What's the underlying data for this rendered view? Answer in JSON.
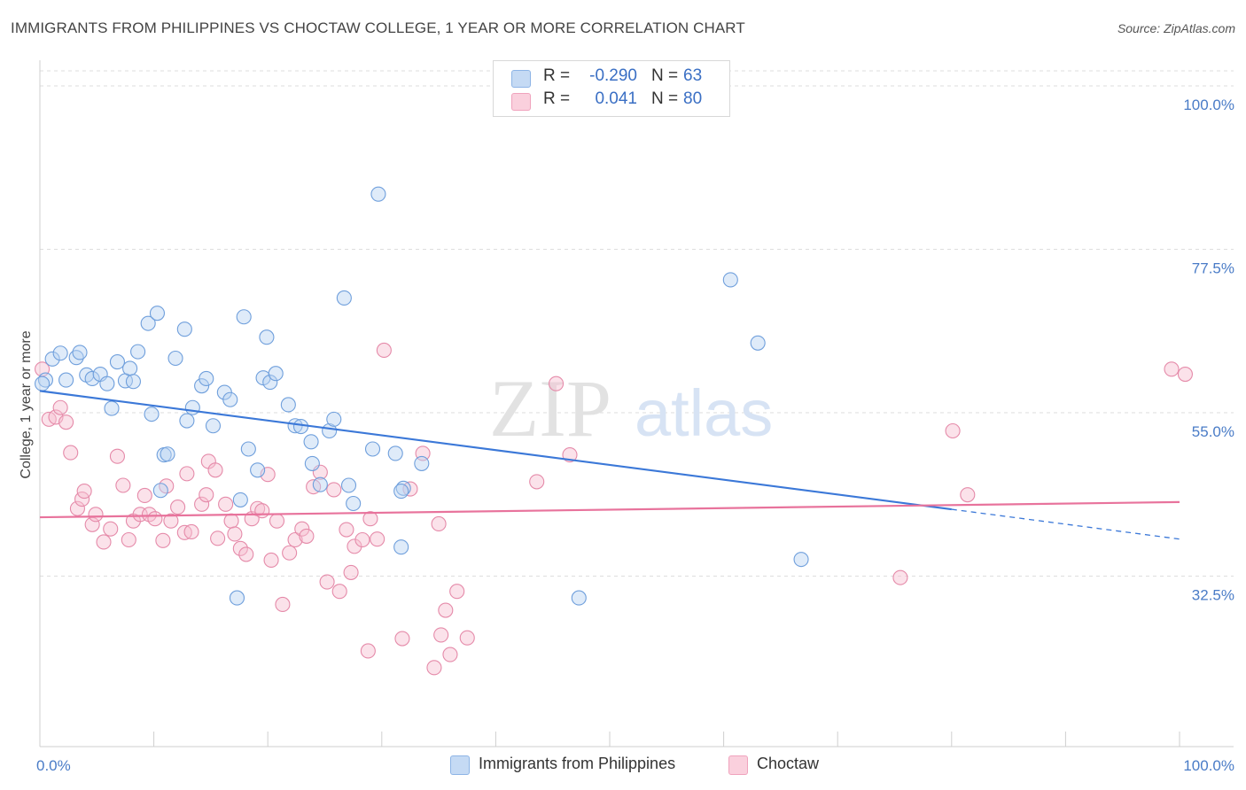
{
  "header": {
    "title": "IMMIGRANTS FROM PHILIPPINES VS CHOCTAW COLLEGE, 1 YEAR OR MORE CORRELATION CHART",
    "source": "Source: ZipAtlas.com"
  },
  "watermark": {
    "zip": "ZIP",
    "atlas": "atlas"
  },
  "legend": {
    "rows": [
      {
        "r_label": "R =",
        "r_value": "-0.290",
        "n_label": "N =",
        "n_value": "63",
        "color": "#a9c8ee"
      },
      {
        "r_label": "R =",
        "r_value": "0.041",
        "n_label": "N =",
        "n_value": "80",
        "color": "#f5b8cb"
      }
    ]
  },
  "bottom_legend": {
    "items": [
      {
        "label": "Immigrants from Philippines",
        "color": "#a9c8ee"
      },
      {
        "label": "Choctaw",
        "color": "#f5b8cb"
      }
    ]
  },
  "chart_data": {
    "type": "scatter",
    "title": "IMMIGRANTS FROM PHILIPPINES VS CHOCTAW COLLEGE, 1 YEAR OR MORE CORRELATION CHART",
    "xlabel": "",
    "ylabel": "College, 1 year or more",
    "xlim": [
      0,
      100
    ],
    "ylim": [
      10,
      105
    ],
    "x_tick_labels": [
      "0.0%",
      "100.0%"
    ],
    "y_ticks": [
      32.5,
      55.0,
      77.5,
      100.0
    ],
    "y_tick_labels": [
      "32.5%",
      "55.0%",
      "77.5%",
      "100.0%"
    ],
    "grid": true,
    "legend_position": "top-center",
    "colors": {
      "philippines": "#3b78d8",
      "choctaw": "#e8739c"
    },
    "series": [
      {
        "name": "Immigrants from Philippines",
        "trend": {
          "x": [
            0,
            80
          ],
          "y": [
            58.0,
            41.7
          ],
          "dashed_extension": {
            "x": [
              80,
              100
            ],
            "y": [
              41.7,
              37.6
            ]
          }
        },
        "points": [
          [
            0.5,
            59.5
          ],
          [
            1.1,
            62.4
          ],
          [
            1.8,
            63.2
          ],
          [
            2.3,
            59.5
          ],
          [
            3.2,
            62.6
          ],
          [
            3.5,
            63.3
          ],
          [
            4.1,
            60.2
          ],
          [
            4.6,
            59.7
          ],
          [
            5.3,
            60.3
          ],
          [
            5.9,
            59.0
          ],
          [
            6.3,
            55.6
          ],
          [
            6.8,
            62.0
          ],
          [
            7.5,
            59.4
          ],
          [
            7.9,
            61.1
          ],
          [
            8.2,
            59.3
          ],
          [
            8.6,
            63.4
          ],
          [
            9.5,
            67.3
          ],
          [
            9.8,
            54.8
          ],
          [
            10.3,
            68.7
          ],
          [
            10.6,
            44.3
          ],
          [
            10.9,
            49.2
          ],
          [
            11.2,
            49.3
          ],
          [
            11.9,
            62.5
          ],
          [
            12.7,
            66.5
          ],
          [
            12.9,
            53.9
          ],
          [
            13.4,
            55.7
          ],
          [
            14.2,
            58.7
          ],
          [
            14.6,
            59.7
          ],
          [
            15.2,
            53.2
          ],
          [
            16.2,
            57.8
          ],
          [
            16.7,
            56.8
          ],
          [
            17.3,
            29.5
          ],
          [
            17.6,
            43.0
          ],
          [
            17.9,
            68.2
          ],
          [
            18.3,
            50.0
          ],
          [
            19.1,
            47.1
          ],
          [
            19.6,
            59.8
          ],
          [
            19.9,
            65.4
          ],
          [
            20.2,
            59.2
          ],
          [
            20.7,
            60.4
          ],
          [
            21.8,
            56.1
          ],
          [
            22.4,
            53.2
          ],
          [
            22.9,
            53.1
          ],
          [
            23.9,
            48.0
          ],
          [
            23.8,
            51.0
          ],
          [
            24.6,
            45.1
          ],
          [
            25.4,
            52.5
          ],
          [
            25.8,
            54.1
          ],
          [
            26.7,
            70.8
          ],
          [
            27.1,
            45.0
          ],
          [
            27.5,
            42.5
          ],
          [
            29.7,
            85.1
          ],
          [
            29.2,
            50.0
          ],
          [
            31.2,
            49.4
          ],
          [
            31.7,
            36.5
          ],
          [
            31.9,
            44.6
          ],
          [
            31.7,
            44.2
          ],
          [
            33.5,
            48.0
          ],
          [
            47.3,
            29.5
          ],
          [
            60.6,
            73.3
          ],
          [
            63.0,
            64.6
          ],
          [
            66.8,
            34.8
          ],
          [
            0.2,
            59.0
          ]
        ]
      },
      {
        "name": "Choctaw",
        "trend": {
          "x": [
            0,
            100
          ],
          "y": [
            40.6,
            42.7
          ]
        },
        "points": [
          [
            0.8,
            54.1
          ],
          [
            1.4,
            54.4
          ],
          [
            1.8,
            55.7
          ],
          [
            2.3,
            53.7
          ],
          [
            2.7,
            49.5
          ],
          [
            3.3,
            41.8
          ],
          [
            3.7,
            43.1
          ],
          [
            3.9,
            44.2
          ],
          [
            4.6,
            39.6
          ],
          [
            4.9,
            41.0
          ],
          [
            5.6,
            37.2
          ],
          [
            6.2,
            39.0
          ],
          [
            6.8,
            49.0
          ],
          [
            7.3,
            45.0
          ],
          [
            7.8,
            37.5
          ],
          [
            8.2,
            40.1
          ],
          [
            8.8,
            41.0
          ],
          [
            9.2,
            43.6
          ],
          [
            9.6,
            41.0
          ],
          [
            10.1,
            40.4
          ],
          [
            10.8,
            37.4
          ],
          [
            11.1,
            44.9
          ],
          [
            11.5,
            40.1
          ],
          [
            12.1,
            42.0
          ],
          [
            12.7,
            38.5
          ],
          [
            12.9,
            46.6
          ],
          [
            13.3,
            38.6
          ],
          [
            14.2,
            42.4
          ],
          [
            14.6,
            43.7
          ],
          [
            14.8,
            48.3
          ],
          [
            15.4,
            47.1
          ],
          [
            15.6,
            37.7
          ],
          [
            16.3,
            42.4
          ],
          [
            16.8,
            40.1
          ],
          [
            17.1,
            38.3
          ],
          [
            17.6,
            36.3
          ],
          [
            18.1,
            35.5
          ],
          [
            18.6,
            40.4
          ],
          [
            19.1,
            41.8
          ],
          [
            19.5,
            41.5
          ],
          [
            20.0,
            46.5
          ],
          [
            20.3,
            34.7
          ],
          [
            20.8,
            40.1
          ],
          [
            21.3,
            28.6
          ],
          [
            21.9,
            35.7
          ],
          [
            22.4,
            37.5
          ],
          [
            23.0,
            39.0
          ],
          [
            23.4,
            38.0
          ],
          [
            24.0,
            44.8
          ],
          [
            24.6,
            46.8
          ],
          [
            25.2,
            31.7
          ],
          [
            25.8,
            44.4
          ],
          [
            26.3,
            30.4
          ],
          [
            26.9,
            38.9
          ],
          [
            27.3,
            33.0
          ],
          [
            27.6,
            36.6
          ],
          [
            28.3,
            37.5
          ],
          [
            29.0,
            40.4
          ],
          [
            28.8,
            22.2
          ],
          [
            29.6,
            37.6
          ],
          [
            30.2,
            63.6
          ],
          [
            31.8,
            23.9
          ],
          [
            32.5,
            44.5
          ],
          [
            33.6,
            49.4
          ],
          [
            34.6,
            19.9
          ],
          [
            35.0,
            39.7
          ],
          [
            35.2,
            24.4
          ],
          [
            35.6,
            27.8
          ],
          [
            36.0,
            21.7
          ],
          [
            36.6,
            30.4
          ],
          [
            37.5,
            24.0
          ],
          [
            43.6,
            45.5
          ],
          [
            45.3,
            59.0
          ],
          [
            46.5,
            49.2
          ],
          [
            0.2,
            61.0
          ],
          [
            75.5,
            32.3
          ],
          [
            80.1,
            52.5
          ],
          [
            81.4,
            43.7
          ],
          [
            99.3,
            61.0
          ],
          [
            100.5,
            60.3
          ]
        ]
      }
    ]
  }
}
